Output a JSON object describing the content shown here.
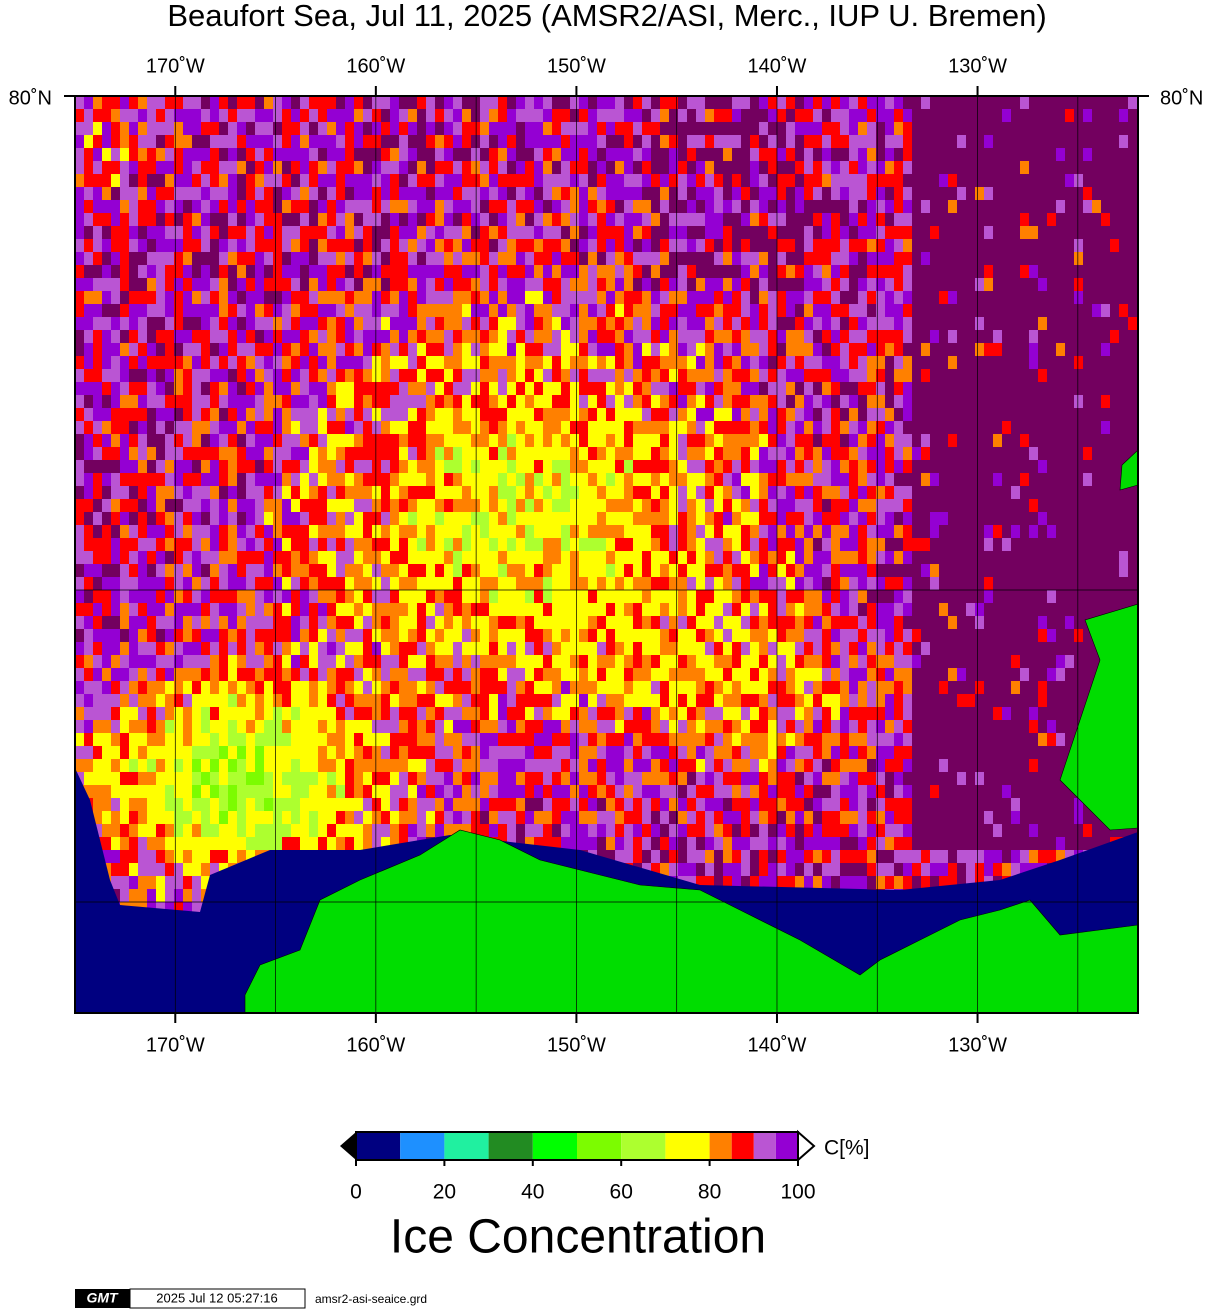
{
  "title": "Beaufort Sea, Jul 11, 2025 (AMSR2/ASI, Merc., IUP U. Bremen)",
  "map": {
    "lon_range": [
      -175,
      -122
    ],
    "lon_ticks": [
      {
        "value": -170,
        "label": "170˚W"
      },
      {
        "value": -160,
        "label": "160˚W"
      },
      {
        "value": -150,
        "label": "150˚W"
      },
      {
        "value": -140,
        "label": "140˚W"
      },
      {
        "value": -130,
        "label": "130˚W"
      }
    ],
    "lat_labels": [
      "80˚N",
      "80˚N"
    ]
  },
  "colorbar": {
    "range": [
      0,
      100
    ],
    "boundaries": [
      0,
      10,
      20,
      30,
      40,
      50,
      60,
      70,
      80,
      85,
      90,
      95,
      100
    ],
    "colors": [
      "#000080",
      "#1e90ff",
      "#20f0a0",
      "#228b22",
      "#00ff00",
      "#7cfc00",
      "#adff2f",
      "#ffff00",
      "#ff8000",
      "#ff0000",
      "#ba55d3",
      "#9400d3"
    ],
    "ticks": [
      0,
      20,
      40,
      60,
      80,
      100
    ],
    "unit_label": "C[%]",
    "title": "Ice Concentration"
  },
  "footer": {
    "logo": "GMT",
    "timestamp": "2025 Jul 12 05:27:16",
    "filename": "amsr2-asi-seaice.grd"
  }
}
